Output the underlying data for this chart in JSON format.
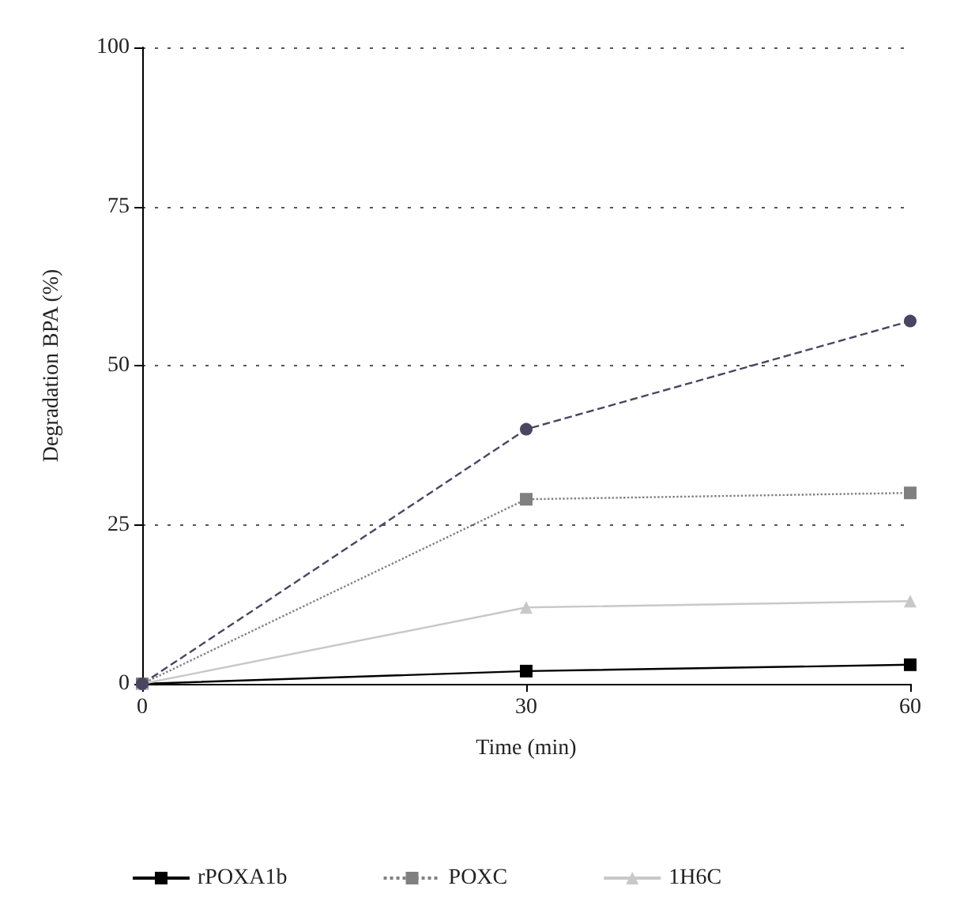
{
  "chart_data": {
    "type": "line",
    "xlabel": "Time (min)",
    "ylabel": "Degradation BPA (%)",
    "x": [
      0,
      30,
      60
    ],
    "xlim": [
      0,
      60
    ],
    "xticks": [
      0,
      30,
      60
    ],
    "ylim": [
      0,
      100
    ],
    "yticks": [
      0,
      25,
      50,
      75,
      100
    ],
    "grid": "y",
    "legend": "bottom",
    "series": [
      {
        "name": "rPOXA1b",
        "color": "#000000",
        "values": [
          0,
          2,
          3
        ],
        "marker": "square",
        "line_style": "solid"
      },
      {
        "name": "POXC",
        "color": "#808080",
        "values": [
          0,
          29,
          30
        ],
        "marker": "square",
        "line_style": "dotted"
      },
      {
        "name": "1H6C",
        "color": "#c8c8c8",
        "values": [
          0,
          12,
          13
        ],
        "marker": "triangle",
        "line_style": "solid"
      },
      {
        "color": "#4a4563",
        "values": [
          0,
          40,
          57
        ],
        "marker": "circle",
        "line_style": "dashed"
      }
    ]
  }
}
